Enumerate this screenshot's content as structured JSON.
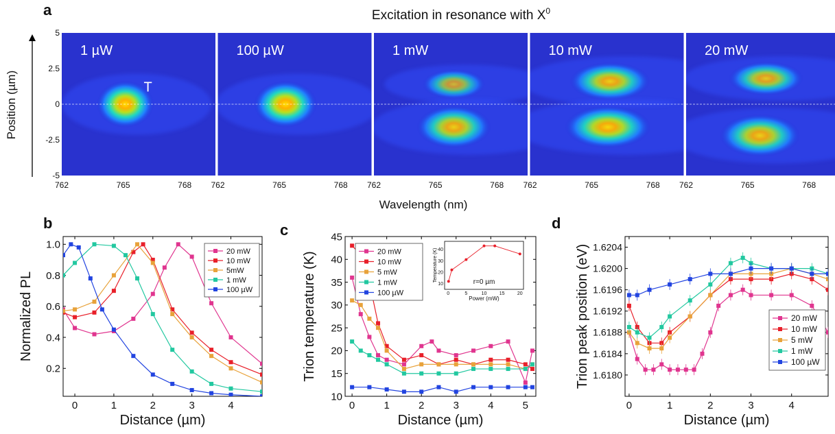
{
  "panel_labels": {
    "a": "a",
    "b": "b",
    "c": "c",
    "d": "d"
  },
  "colors": {
    "20 mW": "#e0358f",
    "10 mW": "#e8202a",
    "5 mW": "#e8a23a",
    "1 mW": "#22c8a0",
    "100 µW": "#2244e0",
    "inset": "#e8202a"
  },
  "chart_data": [
    {
      "id": "a",
      "type": "heatmap",
      "title": "Excitation in resonance with X",
      "title_sup": "0",
      "xlabel": "Wavelength (nm)",
      "ylabel": "Position (µm)",
      "xticks": [
        "762",
        "765",
        "768"
      ],
      "yticks": [
        "5",
        "2.5",
        "0",
        "-2.5",
        "-5"
      ],
      "xlim": [
        762,
        769.5
      ],
      "ylim": [
        -5,
        5
      ],
      "annotation": "T",
      "panels": [
        {
          "label": "1 µW",
          "spots": [
            {
              "x": 765.1,
              "y": 0,
              "w": 1.0,
              "h": 1.1,
              "i": 1.0
            }
          ]
        },
        {
          "label": "100 µW",
          "spots": [
            {
              "x": 765.3,
              "y": 0,
              "w": 1.1,
              "h": 1.1,
              "i": 1.0
            }
          ]
        },
        {
          "label": "1 mW",
          "spots": [
            {
              "x": 765.9,
              "y": 1.4,
              "w": 1.1,
              "h": 0.7,
              "i": 0.75
            },
            {
              "x": 765.9,
              "y": -1.6,
              "w": 1.3,
              "h": 1.0,
              "i": 0.9
            }
          ]
        },
        {
          "label": "10 mW",
          "spots": [
            {
              "x": 765.9,
              "y": 1.6,
              "w": 1.4,
              "h": 0.9,
              "i": 0.9
            },
            {
              "x": 765.8,
              "y": -1.6,
              "w": 1.5,
              "h": 1.0,
              "i": 0.95
            }
          ]
        },
        {
          "label": "20 mW",
          "spots": [
            {
              "x": 765.9,
              "y": 1.8,
              "w": 1.3,
              "h": 0.8,
              "i": 0.85
            },
            {
              "x": 765.6,
              "y": -2.2,
              "w": 1.4,
              "h": 1.0,
              "i": 0.9
            }
          ]
        }
      ]
    },
    {
      "id": "b",
      "type": "line",
      "xlabel": "Distance (µm)",
      "ylabel": "Normalized PL",
      "xlim": [
        -0.3,
        4.8
      ],
      "ylim": [
        0.02,
        1.05
      ],
      "xticks": [
        0,
        1,
        2,
        3,
        4
      ],
      "yticks": [
        0.2,
        0.4,
        0.6,
        0.8,
        1.0
      ],
      "ytick_labels": [
        "0.2",
        "0.4",
        "0.6",
        "0.8",
        "1.0"
      ],
      "legend": "top-right",
      "series": [
        {
          "name": "20 mW",
          "x": [
            -0.3,
            0,
            0.5,
            1,
            1.5,
            2,
            2.3,
            2.65,
            3,
            3.5,
            4,
            4.8
          ],
          "y": [
            0.58,
            0.46,
            0.42,
            0.44,
            0.52,
            0.68,
            0.85,
            1.0,
            0.92,
            0.62,
            0.4,
            0.23
          ]
        },
        {
          "name": "10 mW",
          "x": [
            -0.3,
            0,
            0.5,
            1,
            1.5,
            1.75,
            2,
            2.5,
            3,
            3.5,
            4,
            4.8
          ],
          "y": [
            0.56,
            0.53,
            0.56,
            0.7,
            0.95,
            1.0,
            0.9,
            0.58,
            0.43,
            0.32,
            0.24,
            0.16
          ]
        },
        {
          "name": "5mW",
          "x": [
            -0.3,
            0,
            0.5,
            1,
            1.6,
            2,
            2.5,
            3,
            3.5,
            4,
            4.8
          ],
          "y": [
            0.57,
            0.58,
            0.63,
            0.8,
            1.0,
            0.88,
            0.55,
            0.4,
            0.28,
            0.2,
            0.11
          ]
        },
        {
          "name": "1 mW",
          "x": [
            -0.3,
            0,
            0.5,
            1,
            1.3,
            1.6,
            2,
            2.5,
            3,
            3.5,
            4,
            4.8
          ],
          "y": [
            0.8,
            0.88,
            1.0,
            0.99,
            0.93,
            0.78,
            0.55,
            0.32,
            0.18,
            0.1,
            0.07,
            0.05
          ]
        },
        {
          "name": "100 µW",
          "x": [
            -0.3,
            -0.1,
            0.1,
            0.4,
            0.7,
            1,
            1.5,
            2,
            2.5,
            3,
            3.5,
            4,
            4.8
          ],
          "y": [
            0.93,
            1.0,
            0.98,
            0.78,
            0.58,
            0.45,
            0.28,
            0.16,
            0.1,
            0.06,
            0.04,
            0.03,
            0.02
          ]
        }
      ]
    },
    {
      "id": "c",
      "type": "line",
      "xlabel": "Distance (µm)",
      "ylabel": "Trion temperature (K)",
      "xlim": [
        -0.2,
        5.3
      ],
      "ylim": [
        10,
        45
      ],
      "xticks": [
        0,
        1,
        2,
        3,
        4,
        5
      ],
      "yticks": [
        10,
        15,
        20,
        25,
        30,
        35,
        40,
        45
      ],
      "legend": "top-left",
      "series": [
        {
          "name": "20 mW",
          "x": [
            0,
            0.25,
            0.5,
            0.75,
            1,
            1.5,
            2,
            2.3,
            2.5,
            3,
            3.5,
            4,
            4.5,
            5,
            5.2
          ],
          "y": [
            36,
            28,
            23,
            19,
            18,
            17,
            21,
            22,
            20,
            19,
            20,
            21,
            22,
            13,
            20
          ]
        },
        {
          "name": "10 mW",
          "x": [
            0,
            0.25,
            0.5,
            0.75,
            1,
            1.5,
            2,
            2.5,
            3,
            3.5,
            4,
            4.5,
            5,
            5.2
          ],
          "y": [
            43,
            41,
            35,
            26,
            21,
            18,
            19,
            17,
            18,
            17,
            18,
            18,
            17,
            16
          ]
        },
        {
          "name": "5 mW",
          "x": [
            0,
            0.25,
            0.5,
            0.75,
            1,
            1.5,
            2,
            2.5,
            3,
            3.5,
            4,
            4.5,
            5,
            5.2
          ],
          "y": [
            31,
            30,
            27,
            25,
            20,
            16,
            17,
            17,
            17,
            17,
            17,
            17,
            16,
            17
          ]
        },
        {
          "name": "1 mW",
          "x": [
            0,
            0.25,
            0.5,
            0.75,
            1,
            1.5,
            2,
            2.5,
            3,
            3.5,
            4,
            4.5,
            5,
            5.2
          ],
          "y": [
            22,
            20,
            19,
            18,
            17,
            15,
            15,
            15,
            15,
            16,
            16,
            16,
            16,
            17
          ]
        },
        {
          "name": "100 µW",
          "x": [
            0,
            0.5,
            1,
            1.5,
            2,
            2.5,
            3,
            3.5,
            4,
            4.5,
            5,
            5.2
          ],
          "y": [
            12,
            12,
            11.5,
            11,
            11,
            12,
            11,
            12,
            12,
            12,
            12,
            12
          ]
        }
      ],
      "inset": {
        "type": "line",
        "xlabel": "Power (mW)",
        "ylabel": "Temperature (K)",
        "annotation": "r=0 µm",
        "xlim": [
          -1,
          21
        ],
        "ylim": [
          5,
          47
        ],
        "xticks": [
          0,
          5,
          10,
          15,
          20
        ],
        "yticks": [
          10,
          20,
          30,
          40
        ],
        "x": [
          0.1,
          1,
          5,
          10,
          13,
          20
        ],
        "y": [
          12,
          22,
          31,
          43,
          43,
          36
        ]
      }
    },
    {
      "id": "d",
      "type": "line",
      "xlabel": "Distance (µm)",
      "ylabel": "Trion peak position (eV)",
      "xlim": [
        -0.1,
        4.9
      ],
      "ylim": [
        1.6176,
        1.6206
      ],
      "xticks": [
        0,
        1,
        2,
        3,
        4
      ],
      "yticks": [
        1.618,
        1.6184,
        1.6188,
        1.6192,
        1.6196,
        1.62,
        1.6204
      ],
      "ytick_labels": [
        "1.6180",
        "1.6184",
        "1.6188",
        "1.6192",
        "1.6196",
        "1.6200",
        "1.6204"
      ],
      "legend": "bottom-right",
      "series": [
        {
          "name": "20 mW",
          "x": [
            0,
            0.2,
            0.4,
            0.6,
            0.8,
            1,
            1.2,
            1.4,
            1.6,
            1.8,
            2,
            2.2,
            2.5,
            2.8,
            3,
            3.5,
            4,
            4.5,
            4.9
          ],
          "y": [
            1.6188,
            1.6183,
            1.6181,
            1.6181,
            1.6182,
            1.6181,
            1.6181,
            1.6181,
            1.6181,
            1.6184,
            1.6188,
            1.6193,
            1.6195,
            1.6196,
            1.6195,
            1.6195,
            1.6195,
            1.6193,
            1.6188
          ]
        },
        {
          "name": "10 mW",
          "x": [
            0,
            0.2,
            0.5,
            0.8,
            1,
            1.5,
            2,
            2.5,
            3,
            3.5,
            4,
            4.5,
            4.9
          ],
          "y": [
            1.6193,
            1.6189,
            1.6186,
            1.6186,
            1.6188,
            1.6191,
            1.6195,
            1.6198,
            1.6198,
            1.6198,
            1.6199,
            1.6198,
            1.6196
          ]
        },
        {
          "name": "5 mW",
          "x": [
            0,
            0.2,
            0.5,
            0.8,
            1,
            1.5,
            2,
            2.5,
            3,
            3.5,
            4,
            4.5,
            4.9
          ],
          "y": [
            1.6188,
            1.6186,
            1.6185,
            1.6185,
            1.6187,
            1.6191,
            1.6195,
            1.6199,
            1.6199,
            1.6199,
            1.62,
            1.6199,
            1.6198
          ]
        },
        {
          "name": "1 mW",
          "x": [
            0,
            0.2,
            0.5,
            0.8,
            1,
            1.5,
            2,
            2.5,
            2.8,
            3,
            3.5,
            4,
            4.5,
            4.9
          ],
          "y": [
            1.6189,
            1.6188,
            1.6187,
            1.6189,
            1.6191,
            1.6194,
            1.6197,
            1.6201,
            1.6202,
            1.6201,
            1.62,
            1.62,
            1.62,
            1.6199
          ]
        },
        {
          "name": "100 µW",
          "x": [
            0,
            0.2,
            0.5,
            1,
            1.5,
            2,
            2.5,
            3,
            3.5,
            4,
            4.5,
            4.9
          ],
          "y": [
            1.6195,
            1.6195,
            1.6196,
            1.6197,
            1.6198,
            1.6199,
            1.6199,
            1.62,
            1.62,
            1.62,
            1.6199,
            1.6199
          ]
        }
      ]
    }
  ]
}
